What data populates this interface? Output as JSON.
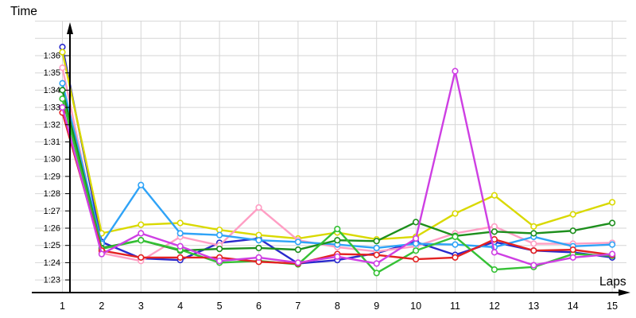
{
  "chart_data": {
    "type": "line",
    "title": "",
    "xlabel": "Laps",
    "ylabel": "Time",
    "x": [
      1,
      2,
      3,
      4,
      5,
      6,
      7,
      8,
      9,
      10,
      11,
      12,
      13,
      14,
      15
    ],
    "y_tick_labels": [
      "1:23",
      "1:24",
      "1:25",
      "1:26",
      "1:27",
      "1:28",
      "1:29",
      "1:30",
      "1:31",
      "1:32",
      "1:33",
      "1:34",
      "1:35",
      "1:36"
    ],
    "y_tick_values": [
      83,
      84,
      85,
      86,
      87,
      88,
      89,
      90,
      91,
      92,
      93,
      94,
      95,
      96
    ],
    "ylim": [
      82.6,
      98.2
    ],
    "xlim": [
      1,
      15
    ],
    "grid": true,
    "legend": "none",
    "point_style": "open-circle",
    "series": [
      {
        "name": "blue",
        "color": "#2929CC",
        "values": [
          96.5,
          85.2,
          84.25,
          84.15,
          85.15,
          85.4,
          83.95,
          84.15,
          84.55,
          85.2,
          84.45,
          85.2,
          84.7,
          84.6,
          84.3
        ]
      },
      {
        "name": "yellow",
        "color": "#D9D900",
        "values": [
          96.2,
          85.7,
          86.2,
          86.3,
          85.9,
          85.6,
          85.4,
          85.75,
          85.35,
          85.5,
          86.85,
          87.9,
          86.1,
          86.8,
          87.5
        ]
      },
      {
        "name": "pink",
        "color": "#FF9EC4",
        "values": [
          95.3,
          84.55,
          84.1,
          85.5,
          85.0,
          87.2,
          85.3,
          84.9,
          84.65,
          84.95,
          85.7,
          86.1,
          85.1,
          85.1,
          85.15
        ]
      },
      {
        "name": "sky-blue",
        "color": "#2FA3F7",
        "values": [
          94.4,
          85.1,
          88.5,
          85.7,
          85.6,
          85.3,
          85.2,
          85.05,
          84.85,
          85.1,
          85.05,
          84.9,
          85.5,
          84.95,
          85.05
        ]
      },
      {
        "name": "dark-green",
        "color": "#1D8F1D",
        "values": [
          94.0,
          84.85,
          85.3,
          84.7,
          84.8,
          84.85,
          84.75,
          85.3,
          85.25,
          86.35,
          85.55,
          85.8,
          85.7,
          85.85,
          86.3
        ]
      },
      {
        "name": "green",
        "color": "#35C135",
        "values": [
          93.5,
          84.8,
          85.3,
          84.75,
          84.0,
          84.1,
          83.9,
          85.95,
          83.4,
          84.7,
          85.5,
          83.6,
          83.75,
          84.5,
          84.4
        ]
      },
      {
        "name": "red",
        "color": "#E32222",
        "values": [
          92.7,
          84.7,
          84.3,
          84.3,
          84.3,
          84.05,
          83.95,
          84.5,
          84.45,
          84.2,
          84.3,
          85.35,
          84.7,
          84.75,
          84.45
        ]
      },
      {
        "name": "magenta",
        "color": "#CE3FE3",
        "values": [
          93.0,
          84.5,
          85.7,
          84.95,
          84.1,
          84.3,
          84.0,
          84.35,
          83.95,
          85.4,
          95.1,
          84.6,
          83.85,
          84.3,
          84.5
        ]
      }
    ]
  },
  "style": {
    "grid_color": "#D6D6D6",
    "axis_color": "#000000",
    "point_fill": "#FFFFFF"
  }
}
